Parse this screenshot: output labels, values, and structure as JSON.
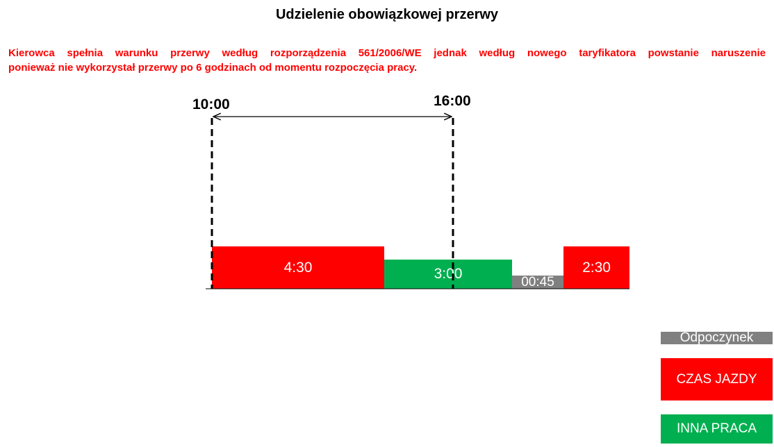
{
  "title": "Udzielenie obowiązkowej przerwy",
  "warning": {
    "line1": "Kierowca spełnia warunku przerwy według rozporządzenia 561/2006/WE jednak według nowego taryfikatora powstanie naruszenie",
    "line2": "ponieważ nie wykorzystał przerwy po 6 godzinach od momentu rozpoczęcia pracy."
  },
  "markers": {
    "start": "10:00",
    "end": "16:00"
  },
  "timeline": [
    {
      "label": "4:30",
      "type": "driving"
    },
    {
      "label": "3:00",
      "type": "other_work"
    },
    {
      "label": "00:45",
      "type": "rest"
    },
    {
      "label": "2:30",
      "type": "driving"
    }
  ],
  "legend": {
    "rest": "Odpoczynek",
    "driving": "CZAS JAZDY",
    "other_work": "INNA PRACA"
  },
  "colors": {
    "driving": "#ff0000",
    "other_work": "#00b050",
    "rest": "#808080",
    "warning": "#ff0000"
  }
}
